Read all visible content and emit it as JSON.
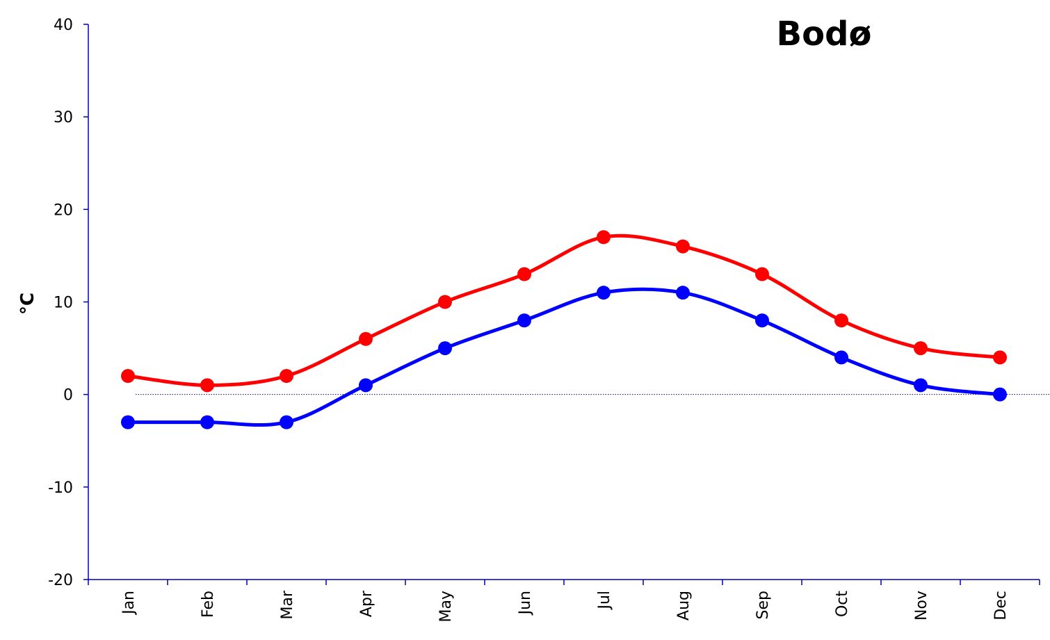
{
  "chart_data": {
    "type": "line",
    "title": "Bodø",
    "xlabel": "",
    "ylabel": "°C",
    "categories": [
      "Jan",
      "Feb",
      "Mar",
      "Apr",
      "May",
      "Jun",
      "Jul",
      "Aug",
      "Sep",
      "Oct",
      "Nov",
      "Dec"
    ],
    "ylim": [
      -20,
      40
    ],
    "yticks": [
      "40",
      "30",
      "20",
      "10",
      "0",
      "-10",
      "-20"
    ],
    "series": [
      {
        "color": "#ff0000",
        "values": [
          2,
          1,
          2,
          6,
          10,
          13,
          17,
          16,
          13,
          8,
          5,
          4
        ]
      },
      {
        "color": "#0000ff",
        "values": [
          -3,
          -3,
          -3,
          1,
          5,
          8,
          11,
          11,
          8,
          4,
          1,
          0
        ]
      }
    ],
    "grid": false,
    "zero_line": "dotted",
    "smoothed": true,
    "legend": "none"
  }
}
